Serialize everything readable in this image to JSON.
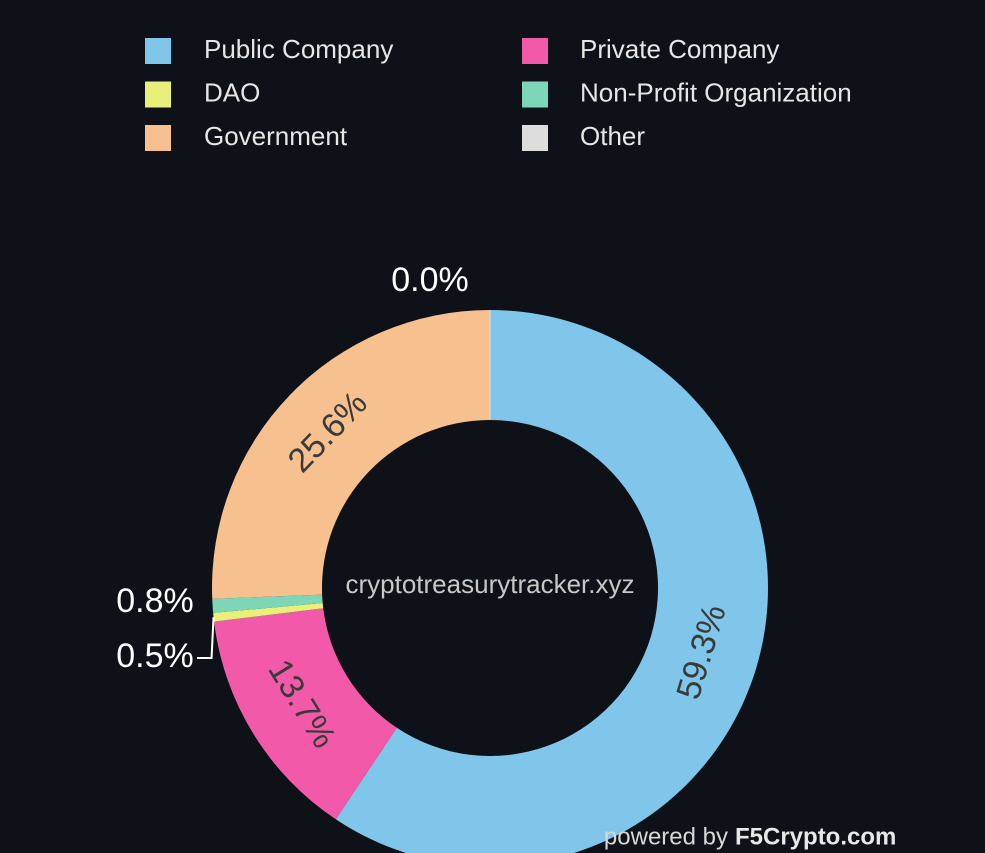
{
  "chart_data": {
    "type": "donut",
    "categories": [
      "Public Company",
      "Private Company",
      "DAO",
      "Non-Profit Organization",
      "Government",
      "Other"
    ],
    "values": [
      59.3,
      13.7,
      0.5,
      0.8,
      25.6,
      0.0
    ],
    "value_labels": [
      "59.3%",
      "13.7%",
      "0.5%",
      "0.8%",
      "25.6%",
      "0.0%"
    ],
    "colors": [
      "#7fc6ea",
      "#f25aa9",
      "#e8f07a",
      "#7dd6b8",
      "#f6c08f",
      "#dddddd"
    ],
    "center_text": "cryptotreasurytracker.xyz",
    "footer": "powered by",
    "footer_brand": "F5Crypto.com",
    "legend": "top"
  }
}
